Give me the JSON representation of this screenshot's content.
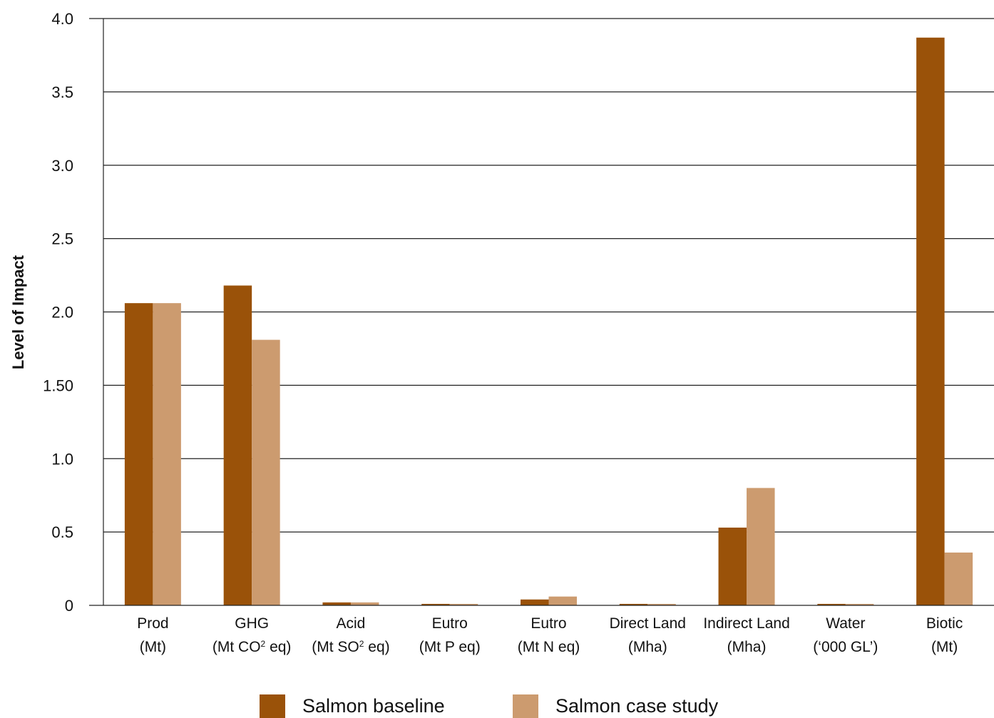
{
  "chart_data": {
    "type": "bar",
    "ylabel": "Level of Impact",
    "ylim": [
      0,
      4.0
    ],
    "yticks": [
      {
        "value": 0,
        "label": "0"
      },
      {
        "value": 0.5,
        "label": "0.5"
      },
      {
        "value": 1.0,
        "label": "1.0"
      },
      {
        "value": 1.5,
        "label": "1.50"
      },
      {
        "value": 2.0,
        "label": "2.0"
      },
      {
        "value": 2.5,
        "label": "2.5"
      },
      {
        "value": 3.0,
        "label": "3.0"
      },
      {
        "value": 3.5,
        "label": "3.5"
      },
      {
        "value": 4.0,
        "label": "4.0"
      }
    ],
    "grid": true,
    "legend_position": "bottom",
    "categories": [
      {
        "line1": "Prod",
        "line2": "(Mt)",
        "sup": ""
      },
      {
        "line1": "GHG",
        "line2": "(Mt CO",
        "sup": "2",
        "line2_end": " eq)"
      },
      {
        "line1": "Acid",
        "line2": "(Mt SO",
        "sup": "2",
        "line2_end": " eq)"
      },
      {
        "line1": "Eutro",
        "line2": "(Mt P eq)",
        "sup": ""
      },
      {
        "line1": "Eutro",
        "line2": "(Mt N eq)",
        "sup": ""
      },
      {
        "line1": "Direct Land",
        "line2": "(Mha)",
        "sup": ""
      },
      {
        "line1": "Indirect Land",
        "line2": "(Mha)",
        "sup": ""
      },
      {
        "line1": "Water",
        "line2": "(‘000 GL’)",
        "sup": ""
      },
      {
        "line1": "Biotic",
        "line2": "(Mt)",
        "sup": ""
      }
    ],
    "series": [
      {
        "name": "Salmon baseline",
        "color": "#9a5209",
        "values": [
          2.06,
          2.18,
          0.02,
          0.01,
          0.04,
          0.01,
          0.53,
          0.01,
          3.87
        ]
      },
      {
        "name": "Salmon case study",
        "color": "#cc9b6f",
        "values": [
          2.06,
          1.81,
          0.02,
          0.01,
          0.06,
          0.01,
          0.8,
          0.01,
          0.36
        ]
      }
    ]
  }
}
